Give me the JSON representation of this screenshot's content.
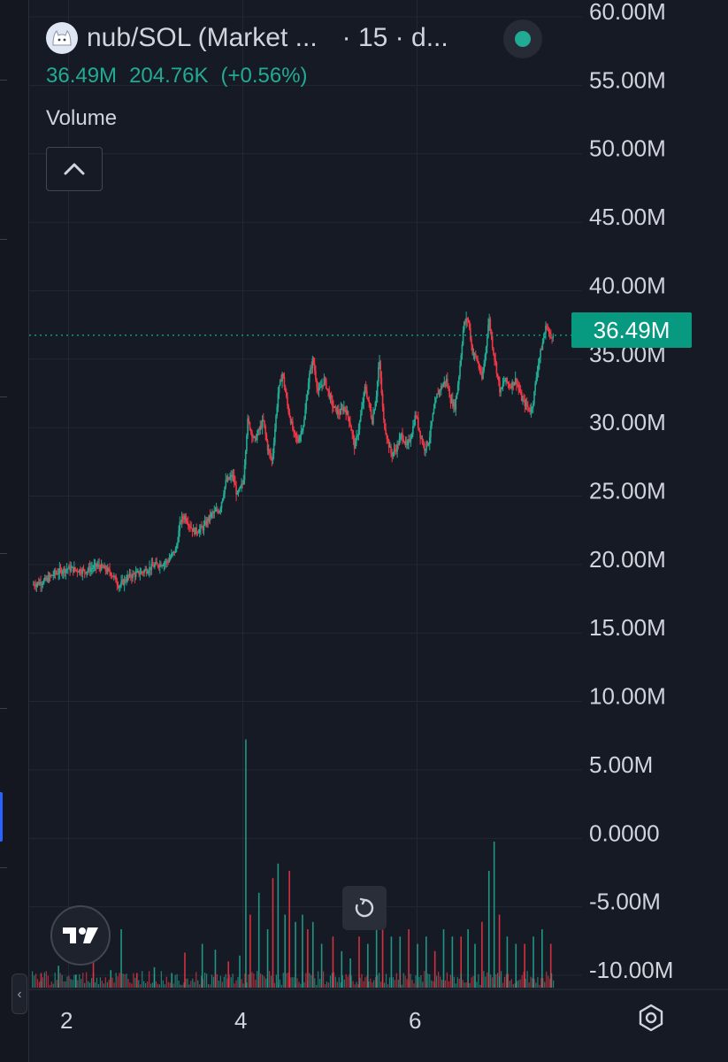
{
  "legend": {
    "symbol": "nub/SOL (Market ...",
    "interval": "· 15 · d...",
    "ohlc": {
      "close": "36.49M",
      "change": "204.76K",
      "change_pct": "(+0.56%)"
    }
  },
  "indicator": {
    "name": "Volume"
  },
  "price_badge": "36.49M",
  "last_value": 36.49,
  "icons": {
    "logo": "cat-avatar-icon",
    "collapse": "chevron-up-icon",
    "tv": "tradingview-logo-icon",
    "reset": "reset-icon",
    "settings": "gear-icon",
    "panel": "chevron-left-icon"
  },
  "colors": {
    "up": "#22ab94",
    "down": "#f23645",
    "badge": "#089981",
    "background": "#161a25",
    "grid": "#232733",
    "text": "#d1d4dc"
  },
  "chart_data": {
    "type": "candlestick",
    "x_tick_labels": [
      "2",
      "4",
      "6"
    ],
    "x_ticks": [
      2,
      4,
      6
    ],
    "xlim": [
      1.6,
      8.0
    ],
    "y_tick_labels": [
      "60.00M",
      "55.00M",
      "50.00M",
      "45.00M",
      "40.00M",
      "35.00M",
      "30.00M",
      "25.00M",
      "20.00M",
      "15.00M",
      "10.00M",
      "5.00M",
      "0.0000",
      "-5.00M",
      "-10.00M"
    ],
    "y_ticks": [
      60,
      55,
      50,
      45,
      40,
      35,
      30,
      25,
      20,
      15,
      10,
      5,
      0,
      -5,
      -10
    ],
    "ylim": [
      -11.0,
      60.5
    ],
    "y_unit": "M",
    "grid": true,
    "price_path": [
      [
        1.6,
        18.0
      ],
      [
        1.75,
        18.3
      ],
      [
        1.85,
        18.8
      ],
      [
        2.0,
        19.2
      ],
      [
        2.2,
        19.0
      ],
      [
        2.35,
        19.4
      ],
      [
        2.5,
        18.9
      ],
      [
        2.6,
        17.9
      ],
      [
        2.7,
        18.6
      ],
      [
        2.85,
        18.9
      ],
      [
        3.0,
        19.4
      ],
      [
        3.15,
        19.7
      ],
      [
        3.25,
        20.6
      ],
      [
        3.3,
        22.7
      ],
      [
        3.35,
        23.0
      ],
      [
        3.45,
        21.9
      ],
      [
        3.55,
        22.1
      ],
      [
        3.65,
        23.1
      ],
      [
        3.75,
        23.5
      ],
      [
        3.82,
        25.5
      ],
      [
        3.9,
        26.0
      ],
      [
        3.95,
        24.5
      ],
      [
        4.02,
        25.5
      ],
      [
        4.07,
        30.0
      ],
      [
        4.15,
        28.5
      ],
      [
        4.25,
        30.0
      ],
      [
        4.3,
        28.0
      ],
      [
        4.35,
        27.0
      ],
      [
        4.42,
        32.0
      ],
      [
        4.47,
        33.5
      ],
      [
        4.53,
        31.0
      ],
      [
        4.6,
        29.0
      ],
      [
        4.65,
        28.5
      ],
      [
        4.72,
        30.0
      ],
      [
        4.77,
        33.0
      ],
      [
        4.82,
        34.5
      ],
      [
        4.88,
        32.0
      ],
      [
        4.95,
        33.0
      ],
      [
        5.05,
        31.0
      ],
      [
        5.12,
        30.5
      ],
      [
        5.18,
        31.0
      ],
      [
        5.24,
        30.0
      ],
      [
        5.3,
        28.0
      ],
      [
        5.36,
        30.0
      ],
      [
        5.42,
        32.5
      ],
      [
        5.5,
        30.0
      ],
      [
        5.55,
        32.0
      ],
      [
        5.58,
        34.5
      ],
      [
        5.63,
        30.0
      ],
      [
        5.68,
        28.5
      ],
      [
        5.72,
        27.5
      ],
      [
        5.78,
        28.0
      ],
      [
        5.84,
        29.0
      ],
      [
        5.9,
        28.0
      ],
      [
        5.95,
        29.0
      ],
      [
        6.0,
        30.5
      ],
      [
        6.05,
        29.0
      ],
      [
        6.1,
        28.0
      ],
      [
        6.15,
        28.5
      ],
      [
        6.2,
        30.5
      ],
      [
        6.25,
        32.0
      ],
      [
        6.3,
        32.5
      ],
      [
        6.35,
        33.0
      ],
      [
        6.4,
        31.5
      ],
      [
        6.45,
        31.0
      ],
      [
        6.5,
        33.5
      ],
      [
        6.55,
        37.0
      ],
      [
        6.6,
        37.5
      ],
      [
        6.65,
        35.0
      ],
      [
        6.7,
        34.5
      ],
      [
        6.76,
        33.0
      ],
      [
        6.8,
        35.0
      ],
      [
        6.84,
        37.5
      ],
      [
        6.88,
        35.5
      ],
      [
        6.92,
        34.0
      ],
      [
        6.97,
        32.0
      ],
      [
        7.02,
        33.0
      ],
      [
        7.08,
        32.5
      ],
      [
        7.15,
        33.0
      ],
      [
        7.22,
        31.5
      ],
      [
        7.28,
        31.0
      ],
      [
        7.32,
        30.7
      ],
      [
        7.35,
        31.5
      ],
      [
        7.4,
        34.0
      ],
      [
        7.45,
        35.5
      ],
      [
        7.5,
        37.0
      ],
      [
        7.55,
        36.0
      ],
      [
        7.58,
        36.49
      ]
    ],
    "volume": [
      [
        1.7,
        1.0
      ],
      [
        1.9,
        1.5
      ],
      [
        2.1,
        0.9
      ],
      [
        2.3,
        2.5
      ],
      [
        2.5,
        1.2
      ],
      [
        2.62,
        4.0
      ],
      [
        2.8,
        1.0
      ],
      [
        3.0,
        1.4
      ],
      [
        3.2,
        1.0
      ],
      [
        3.35,
        2.4
      ],
      [
        3.55,
        3.0
      ],
      [
        3.7,
        2.6
      ],
      [
        3.85,
        1.8
      ],
      [
        3.98,
        2.2
      ],
      [
        4.05,
        17.0
      ],
      [
        4.1,
        5.0
      ],
      [
        4.2,
        6.5
      ],
      [
        4.3,
        4.0
      ],
      [
        4.36,
        7.5
      ],
      [
        4.42,
        8.5
      ],
      [
        4.5,
        5.0
      ],
      [
        4.55,
        8.0
      ],
      [
        4.62,
        4.5
      ],
      [
        4.7,
        5.0
      ],
      [
        4.76,
        4.0
      ],
      [
        4.82,
        4.5
      ],
      [
        4.92,
        3.0
      ],
      [
        5.05,
        3.5
      ],
      [
        5.15,
        2.5
      ],
      [
        5.25,
        2.0
      ],
      [
        5.35,
        3.5
      ],
      [
        5.45,
        3.0
      ],
      [
        5.55,
        6.0
      ],
      [
        5.62,
        5.0
      ],
      [
        5.72,
        3.5
      ],
      [
        5.82,
        3.5
      ],
      [
        5.92,
        4.0
      ],
      [
        6.02,
        3.0
      ],
      [
        6.12,
        3.5
      ],
      [
        6.22,
        2.5
      ],
      [
        6.32,
        4.0
      ],
      [
        6.42,
        3.5
      ],
      [
        6.52,
        3.5
      ],
      [
        6.6,
        4.0
      ],
      [
        6.68,
        3.0
      ],
      [
        6.76,
        4.5
      ],
      [
        6.84,
        8.0
      ],
      [
        6.9,
        10.0
      ],
      [
        6.96,
        5.0
      ],
      [
        7.05,
        3.5
      ],
      [
        7.15,
        3.0
      ],
      [
        7.25,
        3.0
      ],
      [
        7.35,
        3.5
      ],
      [
        7.45,
        4.0
      ],
      [
        7.55,
        3.0
      ]
    ]
  }
}
